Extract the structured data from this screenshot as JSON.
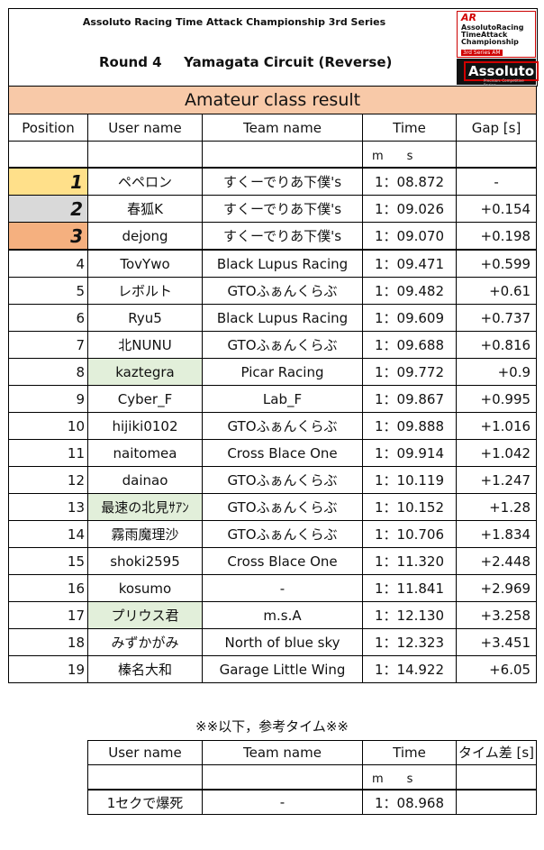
{
  "header": {
    "series": "Assoluto Racing Time Attack Championship 3rd Series",
    "round": "Round 4",
    "circuit": "Yamagata Circuit (Reverse)",
    "logo": {
      "ar": "AR",
      "line1": "AssolutoRacing",
      "line2": "TimeAttack",
      "line3": "Championship",
      "edition": "3rd Series AM",
      "brand": "Assoluto",
      "tagline": "Precision. Competitive Racing"
    }
  },
  "table": {
    "title": "Amateur class result",
    "columns": {
      "position": "Position",
      "user": "User name",
      "team": "Team name",
      "time": "Time",
      "gap": "Gap [s]"
    },
    "time_unit": "m　　s",
    "rows": [
      {
        "pos": "1",
        "user": "ペペロン",
        "team": "すくーでりあ下僕's",
        "time": "1：08.872",
        "gap": "-"
      },
      {
        "pos": "2",
        "user": "春狐K",
        "team": "すくーでりあ下僕's",
        "time": "1：09.026",
        "gap": "+0.154"
      },
      {
        "pos": "3",
        "user": "dejong",
        "team": "すくーでりあ下僕's",
        "time": "1：09.070",
        "gap": "+0.198"
      },
      {
        "pos": "4",
        "user": "TovYwo",
        "team": "Black Lupus Racing",
        "time": "1：09.471",
        "gap": "+0.599"
      },
      {
        "pos": "5",
        "user": "レボルト",
        "team": "GTOふぁんくらぶ",
        "time": "1：09.482",
        "gap": "+0.61"
      },
      {
        "pos": "6",
        "user": "Ryu5",
        "team": "Black Lupus Racing",
        "time": "1：09.609",
        "gap": "+0.737"
      },
      {
        "pos": "7",
        "user": "北NUNU",
        "team": "GTOふぁんくらぶ",
        "time": "1：09.688",
        "gap": "+0.816"
      },
      {
        "pos": "8",
        "user": "kaztegra",
        "team": "Picar Racing",
        "time": "1：09.772",
        "gap": "+0.9"
      },
      {
        "pos": "9",
        "user": "Cyber_F",
        "team": "Lab_F",
        "time": "1：09.867",
        "gap": "+0.995"
      },
      {
        "pos": "10",
        "user": "hijiki0102",
        "team": "GTOふぁんくらぶ",
        "time": "1：09.888",
        "gap": "+1.016"
      },
      {
        "pos": "11",
        "user": "naitomea",
        "team": "Cross Blace One",
        "time": "1：09.914",
        "gap": "+1.042"
      },
      {
        "pos": "12",
        "user": "dainao",
        "team": "GTOふぁんくらぶ",
        "time": "1：10.119",
        "gap": "+1.247"
      },
      {
        "pos": "13",
        "user": "最速の北見ｻｱﾝ",
        "team": "GTOふぁんくらぶ",
        "time": "1：10.152",
        "gap": "+1.28"
      },
      {
        "pos": "14",
        "user": "霧雨魔理沙",
        "team": "GTOふぁんくらぶ",
        "time": "1：10.706",
        "gap": "+1.834"
      },
      {
        "pos": "15",
        "user": "shoki2595",
        "team": "Cross Blace One",
        "time": "1：11.320",
        "gap": "+2.448"
      },
      {
        "pos": "16",
        "user": "kosumo",
        "team": "-",
        "time": "1：11.841",
        "gap": "+2.969"
      },
      {
        "pos": "17",
        "user": "プリウス君",
        "team": "m.s.A",
        "time": "1：12.130",
        "gap": "+3.258"
      },
      {
        "pos": "18",
        "user": "みずかがみ",
        "team": "North of blue sky",
        "time": "1：12.323",
        "gap": "+3.451"
      },
      {
        "pos": "19",
        "user": "榛名大和",
        "team": "Garage Little Wing",
        "time": "1：14.922",
        "gap": "+6.05"
      }
    ]
  },
  "reference": {
    "title": "※※以下，参考タイム※※",
    "columns": {
      "user": "User name",
      "team": "Team name",
      "time": "Time",
      "gap": "タイム差 [s]"
    },
    "time_unit": "m　　s",
    "rows": [
      {
        "user": "1セクで爆死",
        "team": "-",
        "time": "1：08.968",
        "gap": ""
      }
    ]
  },
  "colors": {
    "title_bg": "#f8c9a8",
    "gold": "#ffe08a",
    "silver": "#d9d9d9",
    "bronze": "#f5b07f",
    "highlight_green": "#e2efda"
  }
}
